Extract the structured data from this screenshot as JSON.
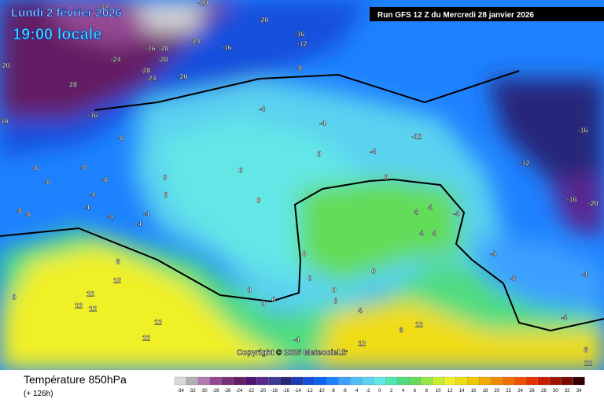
{
  "header": {
    "date": "Lundi 2 février 2026",
    "time": "19:00 locale",
    "run": "Run GFS 12 Z du Mercredi 28 janvier 2026"
  },
  "map": {
    "labels": [
      "-32",
      "-20",
      "-20",
      "-16",
      "-12",
      "-24",
      "-16",
      "-28",
      "-16",
      "-24",
      "-28",
      "-28",
      "-24",
      "-20",
      "-8",
      "-20",
      "28",
      "-16",
      "-16",
      "-4",
      "-8",
      "-4",
      "-8",
      "-8",
      "-12",
      "-8",
      "-4",
      "-8",
      "-16",
      "-12",
      "-16",
      "-20",
      "-4",
      "0",
      "0",
      "0",
      "0",
      "-4",
      "-4",
      "-4",
      "-4",
      "-8",
      "-8",
      "0",
      "8",
      "12",
      "12",
      "12",
      "12",
      "12",
      "12",
      "0",
      "-4",
      "12",
      "4",
      "8",
      "12",
      "-8",
      "-4",
      "-4",
      "8",
      "12",
      "4",
      "4",
      "4",
      "4",
      "-4",
      "-4",
      "0",
      "0",
      "0",
      "0",
      "0",
      "0",
      "0",
      "0",
      "0"
    ],
    "copyright": "Copyright © 2026 Meteociel.fr"
  },
  "legend": {
    "title": "Température 850hPa",
    "lead": "(+ 126h)",
    "scale": [
      -34,
      -32,
      -30,
      -28,
      -26,
      -24,
      -22,
      -20,
      -18,
      -16,
      -14,
      -12,
      -10,
      -8,
      -6,
      -4,
      -2,
      0,
      2,
      4,
      6,
      8,
      10,
      12,
      14,
      16,
      18,
      20,
      22,
      24,
      26,
      28,
      30,
      32,
      34
    ],
    "colors": [
      "#d8d8d8",
      "#b0b0b0",
      "#b07cb0",
      "#944894",
      "#7a2e7a",
      "#641e64",
      "#50146e",
      "#5a2890",
      "#3c3c96",
      "#28287a",
      "#1e3cb4",
      "#1450dc",
      "#0a64f0",
      "#1e82ff",
      "#3ca0ff",
      "#50bef5",
      "#5ad2f0",
      "#64e6e6",
      "#50e6b4",
      "#50dc82",
      "#64dc5a",
      "#96e646",
      "#c8f032",
      "#f0f028",
      "#f0dc14",
      "#f0c800",
      "#f0aa00",
      "#f08c00",
      "#f06e00",
      "#f05000",
      "#e63200",
      "#c81e00",
      "#a01400",
      "#780a00",
      "#320000"
    ]
  }
}
